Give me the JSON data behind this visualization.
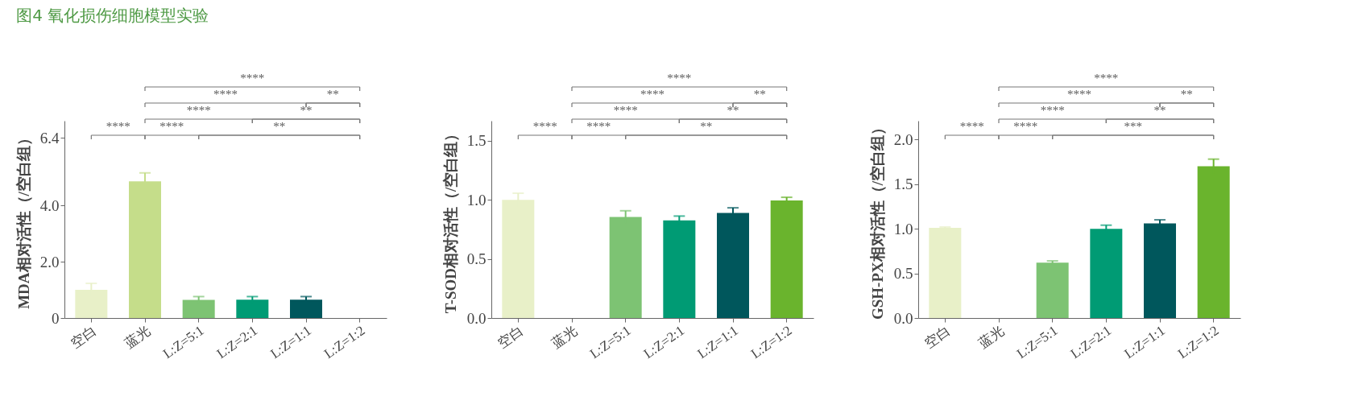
{
  "chart_data": [
    {
      "type": "bar",
      "title": "图4 氧化损伤细胞模型实验",
      "ylabel": "MDA相对活性（/空白组）",
      "categories": [
        "空白",
        "蓝光",
        "L:Z=5:1",
        "L:Z=2:1",
        "L:Z=1:1",
        "L:Z=1:2"
      ],
      "values": [
        1.0,
        4.85,
        0.64,
        0.65,
        0.65,
        null
      ],
      "errors": [
        0.23,
        0.3,
        0.12,
        0.11,
        0.11,
        null
      ],
      "colors": [
        "#e8f0c8",
        "#c5dd8a",
        "#7dc373",
        "#009b74",
        "#00575c",
        "#6ab42d"
      ],
      "ylim": [
        0,
        7.0
      ],
      "yticks": [
        0,
        {
          "value": 2,
          "label": "2.0"
        },
        {
          "value": 4,
          "label": "4.0"
        },
        6.4
      ],
      "grid": false,
      "annotations": [
        "****",
        "****",
        "**",
        "****",
        "**",
        "****",
        "****",
        "**"
      ]
    },
    {
      "type": "bar",
      "ylabel": "T-SOD相对活性（/空白组）",
      "categories": [
        "空白",
        "蓝光",
        "L:Z=5:1",
        "L:Z=2:1",
        "L:Z=1:1",
        "L:Z=1:2"
      ],
      "values": [
        1.0,
        null,
        0.856,
        0.827,
        0.89,
        0.995
      ],
      "errors": [
        0.056,
        null,
        0.052,
        0.036,
        0.043,
        0.027
      ],
      "colors": [
        "#e8f0c8",
        "#c5dd8a",
        "#7dc373",
        "#009b74",
        "#00575c",
        "#6ab42d"
      ],
      "ylim": [
        0,
        1.67
      ],
      "yticks": [
        {
          "value": 0,
          "label": "0.0"
        },
        0.5,
        {
          "value": 1,
          "label": "1.0"
        },
        1.5
      ],
      "grid": false,
      "annotations": [
        "****",
        "****",
        "**",
        "****",
        "**",
        "****",
        "****",
        "**"
      ]
    },
    {
      "type": "bar",
      "ylabel": "GSH-PX相对活性（/空白组）",
      "categories": [
        "空白",
        "蓝光",
        "L:Z=5:1",
        "L:Z=2:1",
        "L:Z=1:1",
        "L:Z=1:2"
      ],
      "values": [
        1.01,
        null,
        0.62,
        1.0,
        1.06,
        1.7
      ],
      "errors": [
        0.01,
        null,
        0.02,
        0.04,
        0.04,
        0.08
      ],
      "colors": [
        "#e8f0c8",
        "#c5dd8a",
        "#7dc373",
        "#009b74",
        "#00575c",
        "#6ab42d"
      ],
      "ylim": [
        0,
        2.21
      ],
      "yticks": [
        {
          "value": 0,
          "label": "0.0"
        },
        0.5,
        {
          "value": 1,
          "label": "1.0"
        },
        1.5,
        {
          "value": 2,
          "label": "2.0"
        }
      ],
      "grid": false,
      "annotations": [
        "****",
        "****",
        "**",
        "****",
        "**",
        "****",
        "****",
        "***"
      ]
    }
  ]
}
